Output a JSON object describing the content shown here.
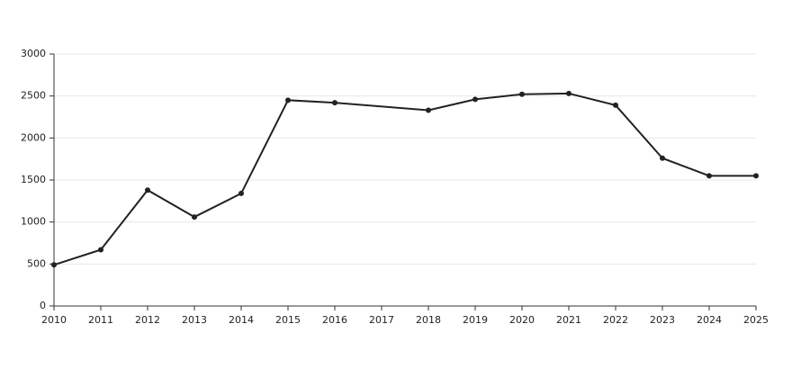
{
  "chart_data": {
    "type": "line",
    "x": [
      2010,
      2011,
      2012,
      2013,
      2014,
      2015,
      2016,
      2018,
      2019,
      2020,
      2021,
      2022,
      2023,
      2024,
      2025
    ],
    "values": [
      490,
      670,
      1380,
      1060,
      1340,
      2450,
      2420,
      2330,
      2460,
      2520,
      2530,
      2390,
      1760,
      1550,
      1550
    ],
    "color": "#222222",
    "xlim": [
      2010,
      2025
    ],
    "xticks": [
      2010,
      2011,
      2012,
      2013,
      2014,
      2015,
      2016,
      2017,
      2018,
      2019,
      2020,
      2021,
      2022,
      2023,
      2024,
      2025
    ],
    "ylim": [
      0,
      3000
    ],
    "yticks": [
      0,
      500,
      1000,
      1500,
      2000,
      2500,
      3000
    ],
    "grid": true
  }
}
